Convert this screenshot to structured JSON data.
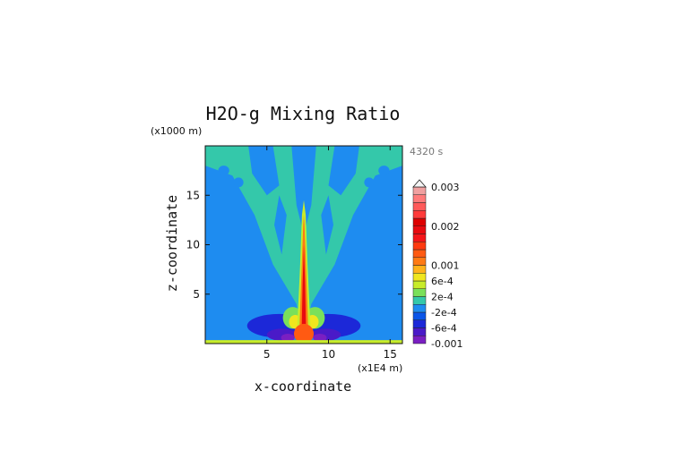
{
  "chart_data": {
    "type": "heatmap",
    "title": "H2O-g Mixing Ratio",
    "xlabel": "x-coordinate",
    "ylabel": "z-coordinate",
    "x_unit": "(x1E4 m)",
    "y_unit": "(x1000 m)",
    "time_label": "4320 s",
    "xlim": [
      0,
      16
    ],
    "ylim": [
      0,
      20
    ],
    "x_ticks": [
      5,
      10,
      15
    ],
    "y_ticks": [
      5,
      10,
      15
    ],
    "x_tick_labels": [
      "5",
      "10",
      "15"
    ],
    "y_tick_labels": [
      "5",
      "10",
      "15"
    ],
    "colorbar": {
      "levels": [
        -0.001,
        -0.0008,
        -0.0006,
        -0.0004,
        -0.0002,
        0,
        0.0002,
        0.0004,
        0.0006,
        0.0008,
        0.001,
        0.0012,
        0.0014,
        0.0016,
        0.0018,
        0.002,
        0.0022,
        0.0024,
        0.0026,
        0.0028,
        0.003
      ],
      "colors": [
        "#7a1fc2",
        "#4a1ac8",
        "#1c28d8",
        "#0a55e8",
        "#1e8cf0",
        "#34c8aa",
        "#7ae05a",
        "#c8ec2a",
        "#f0e61e",
        "#ffb21a",
        "#ff7a14",
        "#ff5a12",
        "#ff3a10",
        "#f4151a",
        "#e80a10",
        "#dd0000",
        "#ff3a3a",
        "#ff5a5a",
        "#ff7a7a",
        "#f0a0a0"
      ],
      "tick_labels": [
        "0.003",
        "0.002",
        "0.001",
        "6e-4",
        "2e-4",
        "-2e-4",
        "-6e-4",
        "-0.001"
      ],
      "tick_values": [
        0.003,
        0.002,
        0.001,
        0.0006,
        0.0002,
        -0.0002,
        -0.0006,
        -0.001
      ],
      "extend_top_triangle": true
    },
    "description_fields": {
      "background_value_color": "#1e8cf0",
      "plume_center_x": 8
    }
  }
}
